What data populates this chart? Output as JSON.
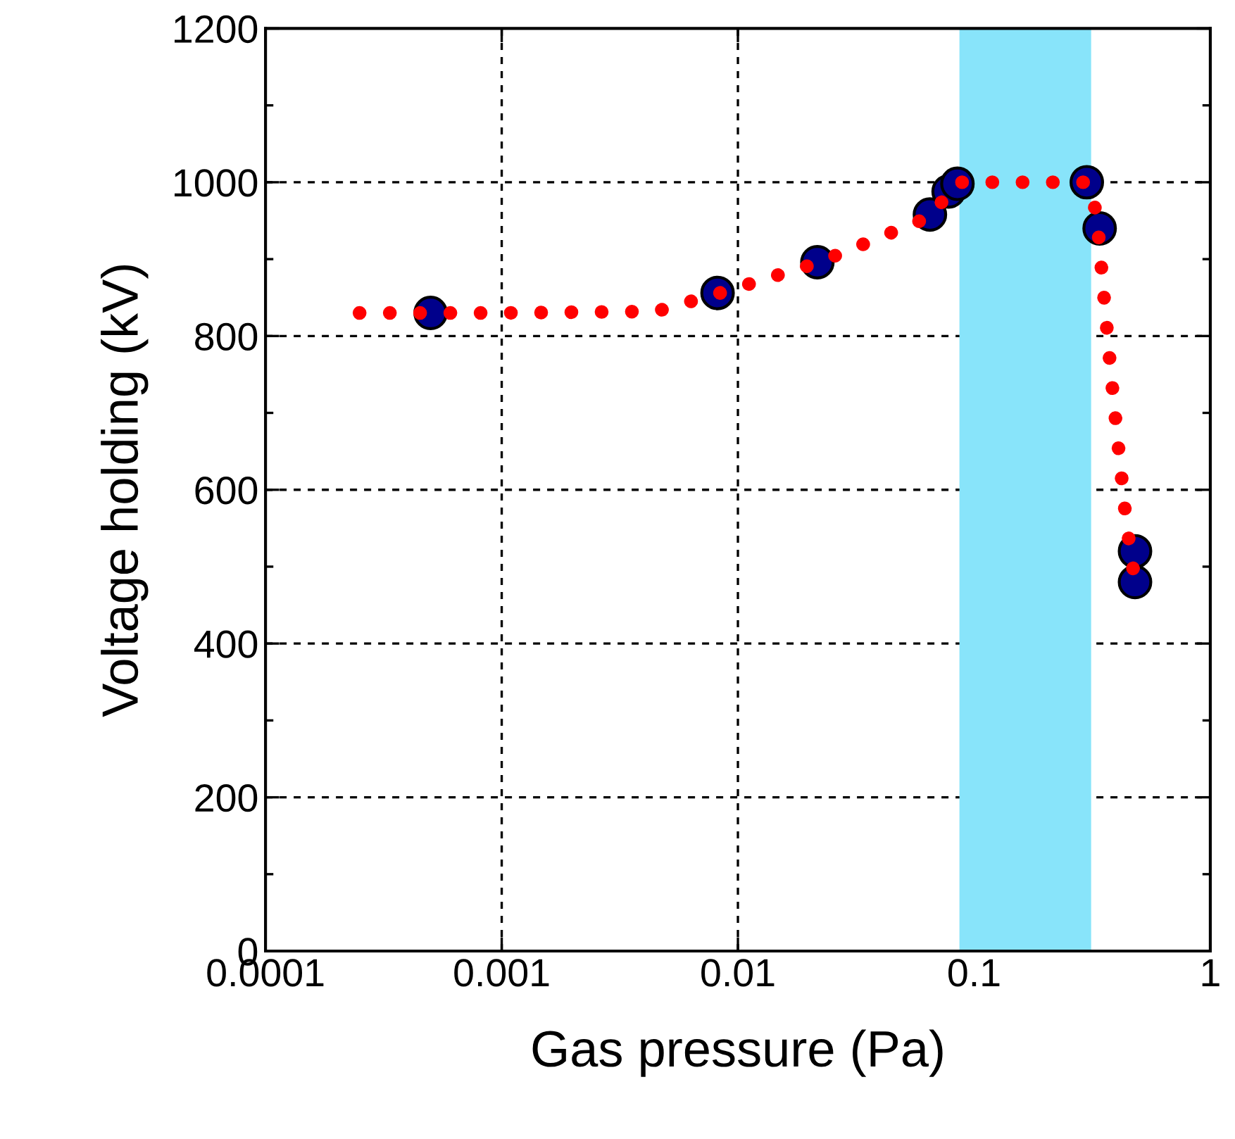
{
  "chart_data": {
    "type": "scatter",
    "xlabel": "Gas pressure (Pa)",
    "ylabel": "Voltage holding (kV)",
    "log": "x",
    "xlim": [
      0.0001,
      1
    ],
    "xticks": [
      {
        "value": 0.0001,
        "label": "0.0001"
      },
      {
        "value": 0.001,
        "label": "0.001"
      },
      {
        "value": 0.01,
        "label": "0.01"
      },
      {
        "value": 0.1,
        "label": "0.1"
      },
      {
        "value": 1,
        "label": "1"
      }
    ],
    "ylim": [
      0,
      1200
    ],
    "yticks": [
      0,
      200,
      400,
      600,
      800,
      1000,
      1200
    ],
    "grid": true,
    "bands": [
      {
        "axis": "x",
        "from": 0.0875,
        "to": 0.31,
        "color": "#88e4fa"
      }
    ],
    "series": [
      {
        "color": "#00008b",
        "marker": "circle",
        "x": [
          0.0005,
          0.0082,
          0.0217,
          0.065,
          0.078,
          0.085,
          0.3,
          0.34,
          0.48,
          0.48
        ],
        "values": [
          830,
          856,
          896,
          958,
          988,
          998,
          1000,
          940,
          520,
          480
        ]
      },
      {
        "type": "line",
        "color": "#ff0000",
        "marker": "none",
        "line_style": "dotted",
        "x": [
          0.00025,
          0.001,
          0.0045,
          0.0082,
          0.0217,
          0.065,
          0.085,
          0.3,
          0.33,
          0.355,
          0.38,
          0.41,
          0.44,
          0.48
        ],
        "values": [
          830,
          830,
          832,
          855,
          895,
          955,
          1000,
          1000,
          960,
          850,
          750,
          650,
          560,
          480
        ]
      }
    ]
  }
}
